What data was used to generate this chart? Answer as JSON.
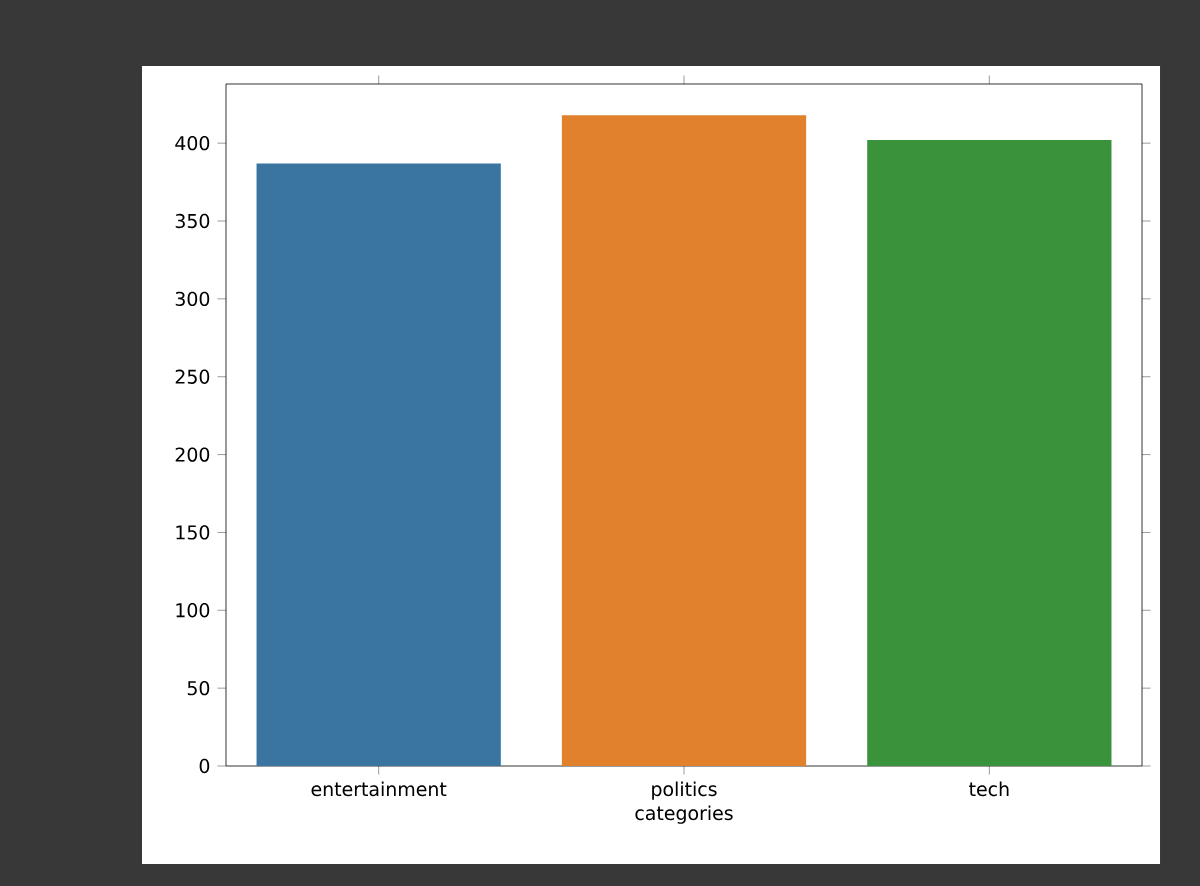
{
  "chart_data": {
    "type": "bar",
    "xlabel": "categories",
    "categories": [
      "entertainment",
      "politics",
      "tech"
    ],
    "values": [
      387,
      418,
      402
    ],
    "colors": [
      "#3a75a1",
      "#e1812c",
      "#3a923a"
    ],
    "ylim": [
      0,
      438
    ],
    "yticks": [
      0,
      50,
      100,
      150,
      200,
      250,
      300,
      350,
      400
    ]
  }
}
